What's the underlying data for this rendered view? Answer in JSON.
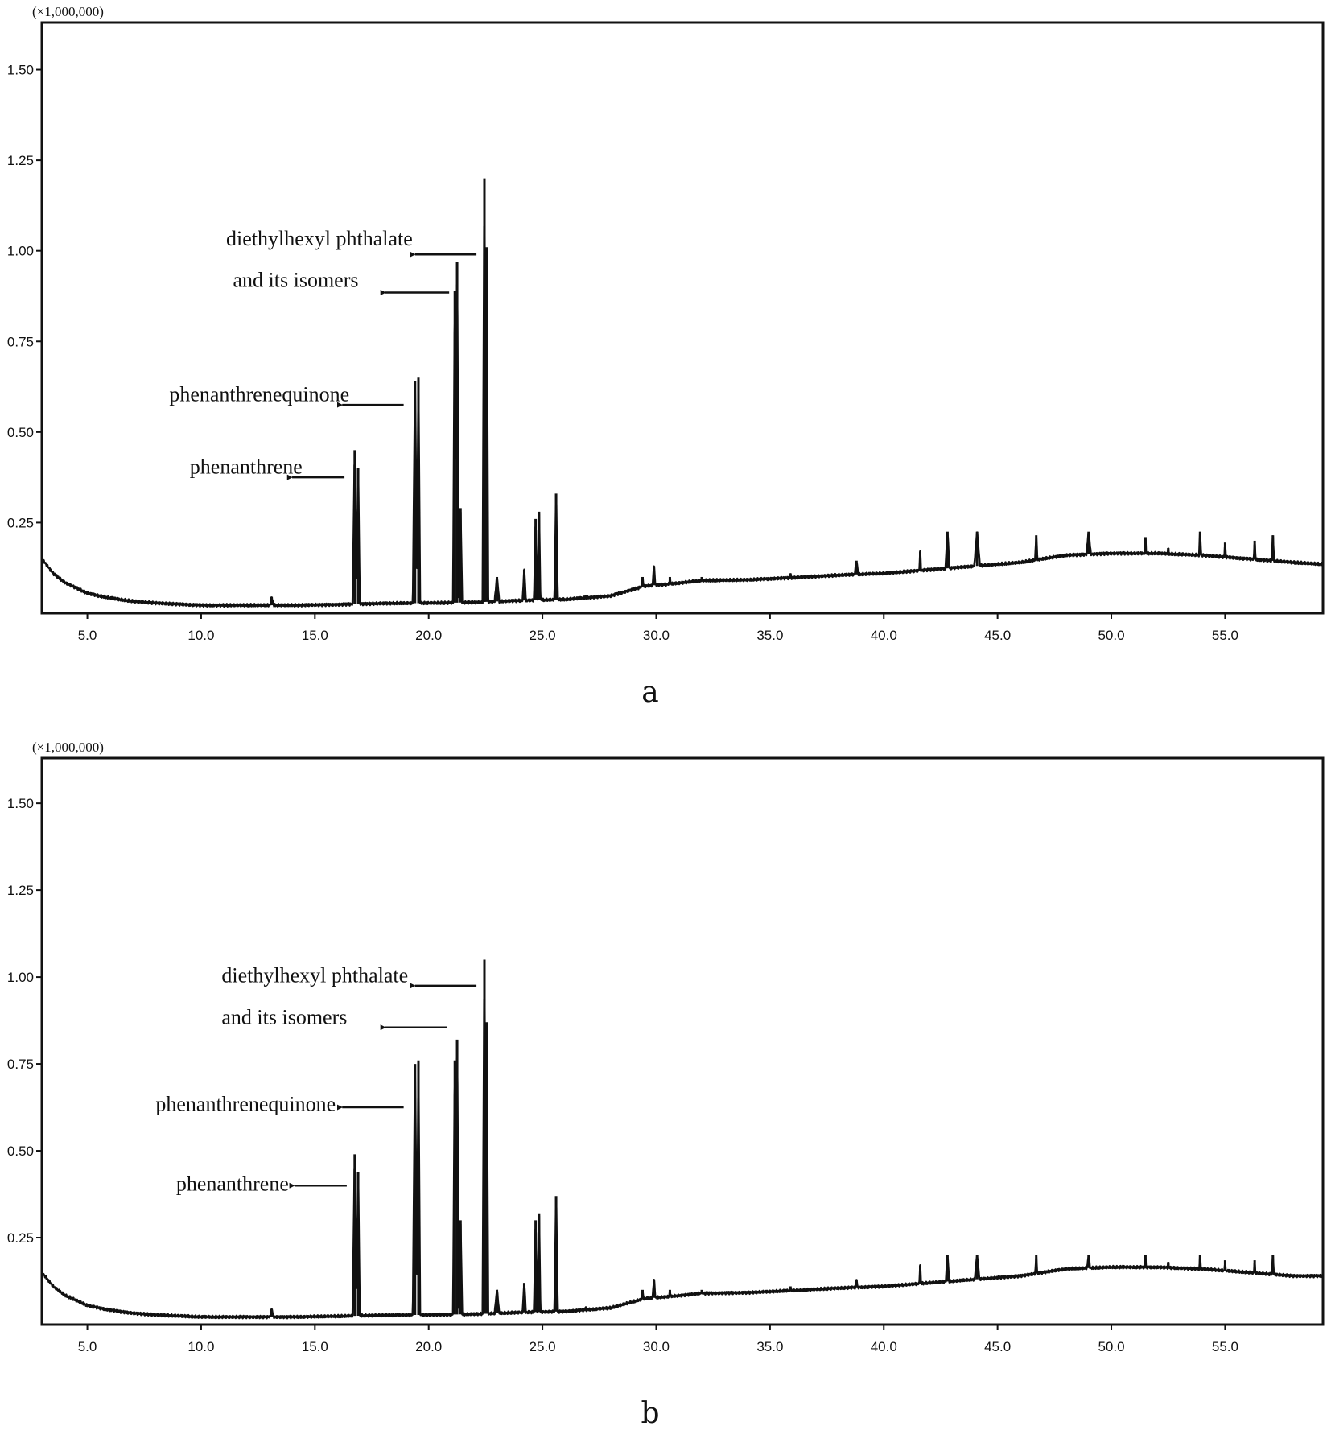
{
  "chart_data": [
    {
      "type": "line",
      "panel_label": "a",
      "y_unit_label": "(×1,000,000)",
      "xlim": [
        3.0,
        59.3
      ],
      "ylim": [
        0,
        1.63
      ],
      "x_ticks": [
        5.0,
        10.0,
        15.0,
        20.0,
        25.0,
        30.0,
        35.0,
        40.0,
        45.0,
        50.0,
        55.0
      ],
      "x_tick_labels": [
        "5.0",
        "10.0",
        "15.0",
        "20.0",
        "25.0",
        "30.0",
        "35.0",
        "40.0",
        "45.0",
        "50.0",
        "55.0"
      ],
      "y_ticks": [
        0.25,
        0.5,
        0.75,
        1.0,
        1.25,
        1.5
      ],
      "y_tick_labels": [
        "0.25",
        "0.50",
        "0.75",
        "1.00",
        "1.25",
        "1.50"
      ],
      "grid": false,
      "baseline": [
        [
          3.0,
          0.15
        ],
        [
          3.5,
          0.11
        ],
        [
          4.0,
          0.085
        ],
        [
          4.5,
          0.07
        ],
        [
          5.0,
          0.055
        ],
        [
          5.5,
          0.048
        ],
        [
          6.0,
          0.042
        ],
        [
          6.5,
          0.037
        ],
        [
          7.0,
          0.033
        ],
        [
          8.0,
          0.028
        ],
        [
          9.0,
          0.025
        ],
        [
          10.0,
          0.022
        ],
        [
          12.0,
          0.022
        ],
        [
          14.0,
          0.022
        ],
        [
          16.0,
          0.024
        ],
        [
          18.0,
          0.027
        ],
        [
          20.0,
          0.028
        ],
        [
          22.0,
          0.03
        ],
        [
          24.0,
          0.035
        ],
        [
          26.0,
          0.038
        ],
        [
          28.0,
          0.048
        ],
        [
          29.5,
          0.075
        ],
        [
          30.5,
          0.08
        ],
        [
          32.0,
          0.09
        ],
        [
          34.0,
          0.092
        ],
        [
          36.0,
          0.098
        ],
        [
          38.0,
          0.105
        ],
        [
          40.0,
          0.11
        ],
        [
          42.0,
          0.12
        ],
        [
          44.0,
          0.13
        ],
        [
          46.0,
          0.14
        ],
        [
          48.0,
          0.16
        ],
        [
          50.0,
          0.165
        ],
        [
          52.0,
          0.165
        ],
        [
          54.0,
          0.16
        ],
        [
          56.0,
          0.15
        ],
        [
          58.0,
          0.14
        ],
        [
          59.3,
          0.135
        ]
      ],
      "peaks": [
        {
          "x": 13.1,
          "y": 0.045,
          "w": 0.15
        },
        {
          "x": 16.75,
          "y": 0.45,
          "w": 0.1
        },
        {
          "x": 16.9,
          "y": 0.4,
          "w": 0.08
        },
        {
          "x": 19.4,
          "y": 0.64,
          "w": 0.1
        },
        {
          "x": 19.55,
          "y": 0.65,
          "w": 0.08
        },
        {
          "x": 21.15,
          "y": 0.89,
          "w": 0.08
        },
        {
          "x": 21.25,
          "y": 0.97,
          "w": 0.08
        },
        {
          "x": 21.4,
          "y": 0.29,
          "w": 0.08
        },
        {
          "x": 22.45,
          "y": 1.2,
          "w": 0.08
        },
        {
          "x": 22.55,
          "y": 1.01,
          "w": 0.07
        },
        {
          "x": 23.0,
          "y": 0.1,
          "w": 0.15
        },
        {
          "x": 24.2,
          "y": 0.12,
          "w": 0.1
        },
        {
          "x": 24.7,
          "y": 0.26,
          "w": 0.08
        },
        {
          "x": 24.85,
          "y": 0.28,
          "w": 0.07
        },
        {
          "x": 25.6,
          "y": 0.33,
          "w": 0.08
        },
        {
          "x": 26.9,
          "y": 0.05,
          "w": 0.15
        },
        {
          "x": 29.4,
          "y": 0.1,
          "w": 0.15
        },
        {
          "x": 29.9,
          "y": 0.13,
          "w": 0.15
        },
        {
          "x": 30.6,
          "y": 0.1,
          "w": 0.15
        },
        {
          "x": 32.0,
          "y": 0.1,
          "w": 0.2
        },
        {
          "x": 35.9,
          "y": 0.11,
          "w": 0.2
        },
        {
          "x": 38.8,
          "y": 0.145,
          "w": 0.3
        },
        {
          "x": 41.6,
          "y": 0.17,
          "w": 0.12
        },
        {
          "x": 42.8,
          "y": 0.225,
          "w": 0.2
        },
        {
          "x": 44.1,
          "y": 0.225,
          "w": 0.3
        },
        {
          "x": 46.7,
          "y": 0.215,
          "w": 0.15
        },
        {
          "x": 49.0,
          "y": 0.225,
          "w": 0.35
        },
        {
          "x": 50.5,
          "y": 0.17,
          "w": 0.2
        },
        {
          "x": 51.5,
          "y": 0.21,
          "w": 0.12
        },
        {
          "x": 52.5,
          "y": 0.18,
          "w": 0.3
        },
        {
          "x": 53.9,
          "y": 0.225,
          "w": 0.15
        },
        {
          "x": 55.0,
          "y": 0.195,
          "w": 0.15
        },
        {
          "x": 56.3,
          "y": 0.2,
          "w": 0.15
        },
        {
          "x": 57.1,
          "y": 0.215,
          "w": 0.15
        }
      ],
      "annotations": [
        {
          "text": "diethylhexyl phthalate",
          "text_x": 11.1,
          "text_y": 1.015,
          "arrow_from_x": 22.1,
          "arrow_from_y": 0.99,
          "arrow_to_x": 19.4,
          "arrow_to_y": 0.99
        },
        {
          "text": "and its  isomers",
          "text_x": 11.4,
          "text_y": 0.9,
          "arrow_from_x": 20.9,
          "arrow_from_y": 0.885,
          "arrow_to_x": 18.1,
          "arrow_to_y": 0.885
        },
        {
          "text": "phenanthrenequinone",
          "text_x": 8.6,
          "text_y": 0.585,
          "arrow_from_x": 18.9,
          "arrow_from_y": 0.575,
          "arrow_to_x": 16.2,
          "arrow_to_y": 0.575
        },
        {
          "text": "phenanthrene",
          "text_x": 9.5,
          "text_y": 0.385,
          "arrow_from_x": 16.3,
          "arrow_from_y": 0.375,
          "arrow_to_x": 14.0,
          "arrow_to_y": 0.375
        }
      ]
    },
    {
      "type": "line",
      "panel_label": "b",
      "y_unit_label": "(×1,000,000)",
      "xlim": [
        3.0,
        59.3
      ],
      "ylim": [
        0,
        1.63
      ],
      "x_ticks": [
        5.0,
        10.0,
        15.0,
        20.0,
        25.0,
        30.0,
        35.0,
        40.0,
        45.0,
        50.0,
        55.0
      ],
      "x_tick_labels": [
        "5.0",
        "10.0",
        "15.0",
        "20.0",
        "25.0",
        "30.0",
        "35.0",
        "40.0",
        "45.0",
        "50.0",
        "55.0"
      ],
      "y_ticks": [
        0.25,
        0.5,
        0.75,
        1.0,
        1.25,
        1.5
      ],
      "y_tick_labels": [
        "0.25",
        "0.50",
        "0.75",
        "1.00",
        "1.25",
        "1.50"
      ],
      "grid": false,
      "baseline": [
        [
          3.0,
          0.15
        ],
        [
          3.5,
          0.11
        ],
        [
          4.0,
          0.085
        ],
        [
          4.5,
          0.07
        ],
        [
          5.0,
          0.055
        ],
        [
          5.5,
          0.048
        ],
        [
          6.0,
          0.042
        ],
        [
          6.5,
          0.037
        ],
        [
          7.0,
          0.033
        ],
        [
          8.0,
          0.028
        ],
        [
          9.0,
          0.025
        ],
        [
          10.0,
          0.022
        ],
        [
          12.0,
          0.022
        ],
        [
          14.0,
          0.022
        ],
        [
          16.0,
          0.024
        ],
        [
          18.0,
          0.027
        ],
        [
          20.0,
          0.028
        ],
        [
          22.0,
          0.03
        ],
        [
          24.0,
          0.035
        ],
        [
          26.0,
          0.038
        ],
        [
          28.0,
          0.048
        ],
        [
          29.5,
          0.075
        ],
        [
          30.5,
          0.08
        ],
        [
          32.0,
          0.09
        ],
        [
          34.0,
          0.092
        ],
        [
          36.0,
          0.098
        ],
        [
          38.0,
          0.105
        ],
        [
          40.0,
          0.11
        ],
        [
          42.0,
          0.12
        ],
        [
          44.0,
          0.13
        ],
        [
          46.0,
          0.14
        ],
        [
          48.0,
          0.16
        ],
        [
          50.0,
          0.165
        ],
        [
          52.0,
          0.165
        ],
        [
          54.0,
          0.16
        ],
        [
          56.0,
          0.15
        ],
        [
          58.0,
          0.14
        ],
        [
          59.3,
          0.14
        ]
      ],
      "peaks": [
        {
          "x": 13.1,
          "y": 0.045,
          "w": 0.15
        },
        {
          "x": 16.75,
          "y": 0.49,
          "w": 0.1
        },
        {
          "x": 16.9,
          "y": 0.44,
          "w": 0.08
        },
        {
          "x": 19.4,
          "y": 0.75,
          "w": 0.1
        },
        {
          "x": 19.55,
          "y": 0.76,
          "w": 0.08
        },
        {
          "x": 21.15,
          "y": 0.76,
          "w": 0.08
        },
        {
          "x": 21.25,
          "y": 0.82,
          "w": 0.08
        },
        {
          "x": 21.4,
          "y": 0.3,
          "w": 0.08
        },
        {
          "x": 22.45,
          "y": 1.05,
          "w": 0.08
        },
        {
          "x": 22.55,
          "y": 0.87,
          "w": 0.07
        },
        {
          "x": 23.0,
          "y": 0.1,
          "w": 0.15
        },
        {
          "x": 24.2,
          "y": 0.12,
          "w": 0.1
        },
        {
          "x": 24.7,
          "y": 0.3,
          "w": 0.08
        },
        {
          "x": 24.85,
          "y": 0.32,
          "w": 0.07
        },
        {
          "x": 25.6,
          "y": 0.37,
          "w": 0.08
        },
        {
          "x": 26.9,
          "y": 0.05,
          "w": 0.15
        },
        {
          "x": 29.4,
          "y": 0.1,
          "w": 0.15
        },
        {
          "x": 29.9,
          "y": 0.13,
          "w": 0.15
        },
        {
          "x": 30.6,
          "y": 0.1,
          "w": 0.15
        },
        {
          "x": 32.0,
          "y": 0.1,
          "w": 0.2
        },
        {
          "x": 35.9,
          "y": 0.11,
          "w": 0.2
        },
        {
          "x": 38.8,
          "y": 0.13,
          "w": 0.3
        },
        {
          "x": 41.6,
          "y": 0.17,
          "w": 0.12
        },
        {
          "x": 42.8,
          "y": 0.2,
          "w": 0.2
        },
        {
          "x": 44.1,
          "y": 0.2,
          "w": 0.3
        },
        {
          "x": 46.7,
          "y": 0.2,
          "w": 0.15
        },
        {
          "x": 49.0,
          "y": 0.2,
          "w": 0.35
        },
        {
          "x": 50.5,
          "y": 0.17,
          "w": 0.2
        },
        {
          "x": 51.5,
          "y": 0.2,
          "w": 0.12
        },
        {
          "x": 52.5,
          "y": 0.18,
          "w": 0.3
        },
        {
          "x": 53.9,
          "y": 0.2,
          "w": 0.15
        },
        {
          "x": 55.0,
          "y": 0.185,
          "w": 0.15
        },
        {
          "x": 56.3,
          "y": 0.185,
          "w": 0.15
        },
        {
          "x": 57.1,
          "y": 0.2,
          "w": 0.15
        }
      ],
      "annotations": [
        {
          "text": "diethylhexyl phthalate",
          "text_x": 10.9,
          "text_y": 0.985,
          "arrow_from_x": 22.1,
          "arrow_from_y": 0.975,
          "arrow_to_x": 19.4,
          "arrow_to_y": 0.975
        },
        {
          "text": "and its  isomers",
          "text_x": 10.9,
          "text_y": 0.865,
          "arrow_from_x": 20.8,
          "arrow_from_y": 0.855,
          "arrow_to_x": 18.1,
          "arrow_to_y": 0.855
        },
        {
          "text": "phenanthrenequinone",
          "text_x": 8.0,
          "text_y": 0.615,
          "arrow_from_x": 18.9,
          "arrow_from_y": 0.625,
          "arrow_to_x": 16.2,
          "arrow_to_y": 0.625
        },
        {
          "text": "phenanthrene",
          "text_x": 8.9,
          "text_y": 0.385,
          "arrow_from_x": 16.4,
          "arrow_from_y": 0.4,
          "arrow_to_x": 14.1,
          "arrow_to_y": 0.4
        }
      ]
    }
  ]
}
